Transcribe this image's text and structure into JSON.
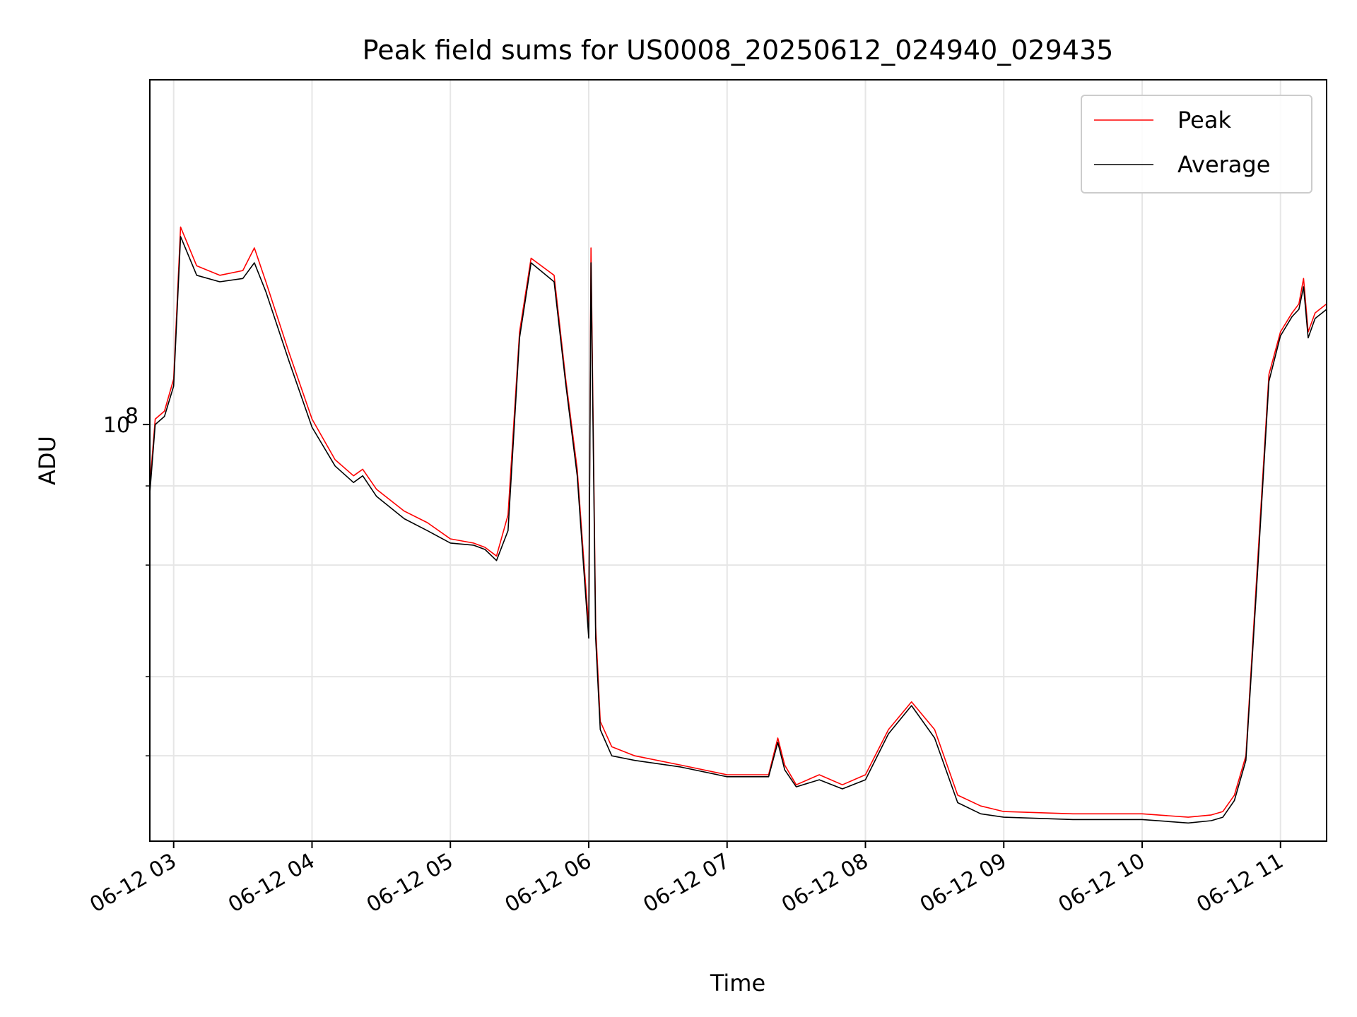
{
  "chart_data": {
    "type": "line",
    "title": "Peak field sums for US0008_20250612_024940_029435",
    "xlabel": "Time",
    "ylabel": "ADU",
    "y_scale": "log",
    "ylim": [
      22000000,
      350000000
    ],
    "y_major_tick_labels": [
      {
        "value": 100000000,
        "label": "10",
        "exp": "8"
      }
    ],
    "y_minor_ticks": [
      30000000,
      40000000,
      60000000,
      80000000
    ],
    "xlim": [
      "06-12 02:49:40",
      "06-12 11:20:00"
    ],
    "x_ticks": [
      {
        "value": "06-12 03:00",
        "label": "06-12 03"
      },
      {
        "value": "06-12 04:00",
        "label": "06-12 04"
      },
      {
        "value": "06-12 05:00",
        "label": "06-12 05"
      },
      {
        "value": "06-12 06:00",
        "label": "06-12 06"
      },
      {
        "value": "06-12 07:00",
        "label": "06-12 07"
      },
      {
        "value": "06-12 08:00",
        "label": "06-12 08"
      },
      {
        "value": "06-12 09:00",
        "label": "06-12 09"
      },
      {
        "value": "06-12 10:00",
        "label": "06-12 10"
      },
      {
        "value": "06-12 11:00",
        "label": "06-12 11"
      }
    ],
    "grid": true,
    "legend": {
      "placement": "top-right"
    },
    "series": [
      {
        "name": "Peak",
        "color": "#ff0000",
        "x": [
          "06-12 02:49:40",
          "06-12 02:52",
          "06-12 02:56",
          "06-12 03:00",
          "06-12 03:03",
          "06-12 03:10",
          "06-12 03:20",
          "06-12 03:30",
          "06-12 03:35",
          "06-12 03:40",
          "06-12 03:50",
          "06-12 04:00",
          "06-12 04:10",
          "06-12 04:18",
          "06-12 04:22",
          "06-12 04:28",
          "06-12 04:40",
          "06-12 04:50",
          "06-12 05:00",
          "06-12 05:10",
          "06-12 05:15",
          "06-12 05:20",
          "06-12 05:25",
          "06-12 05:30",
          "06-12 05:35",
          "06-12 05:45",
          "06-12 05:50",
          "06-12 05:55",
          "06-12 05:58",
          "06-12 06:00",
          "06-12 06:01",
          "06-12 06:03",
          "06-12 06:05",
          "06-12 06:10",
          "06-12 06:20",
          "06-12 06:40",
          "06-12 07:00",
          "06-12 07:10",
          "06-12 07:18",
          "06-12 07:22",
          "06-12 07:25",
          "06-12 07:30",
          "06-12 07:40",
          "06-12 07:50",
          "06-12 08:00",
          "06-12 08:10",
          "06-12 08:20",
          "06-12 08:30",
          "06-12 08:40",
          "06-12 08:50",
          "06-12 09:00",
          "06-12 09:30",
          "06-12 10:00",
          "06-12 10:20",
          "06-12 10:30",
          "06-12 10:35",
          "06-12 10:40",
          "06-12 10:45",
          "06-12 10:50",
          "06-12 10:55",
          "06-12 11:00",
          "06-12 11:05",
          "06-12 11:08",
          "06-12 11:10",
          "06-12 11:12",
          "06-12 11:15",
          "06-12 11:20"
        ],
        "values": [
          80000000,
          102000000,
          105000000,
          118000000,
          205000000,
          178000000,
          172000000,
          175000000,
          190000000,
          168000000,
          130000000,
          102000000,
          88000000,
          83000000,
          85000000,
          79000000,
          73000000,
          70000000,
          66000000,
          65000000,
          64000000,
          62000000,
          72000000,
          140000000,
          183000000,
          172000000,
          118000000,
          85000000,
          60000000,
          48000000,
          190000000,
          48000000,
          34000000,
          31000000,
          30000000,
          29000000,
          28000000,
          28000000,
          28000000,
          32000000,
          29000000,
          27000000,
          28000000,
          27000000,
          28000000,
          33000000,
          36500000,
          33000000,
          26000000,
          25000000,
          24500000,
          24300000,
          24300000,
          24000000,
          24200000,
          24500000,
          26000000,
          30000000,
          60000000,
          120000000,
          140000000,
          150000000,
          155000000,
          170000000,
          140000000,
          150000000,
          155000000
        ]
      },
      {
        "name": "Average",
        "color": "#000000",
        "x": [
          "06-12 02:49:40",
          "06-12 02:52",
          "06-12 02:56",
          "06-12 03:00",
          "06-12 03:03",
          "06-12 03:10",
          "06-12 03:20",
          "06-12 03:30",
          "06-12 03:35",
          "06-12 03:40",
          "06-12 03:50",
          "06-12 04:00",
          "06-12 04:10",
          "06-12 04:18",
          "06-12 04:22",
          "06-12 04:28",
          "06-12 04:40",
          "06-12 04:50",
          "06-12 05:00",
          "06-12 05:10",
          "06-12 05:15",
          "06-12 05:20",
          "06-12 05:25",
          "06-12 05:30",
          "06-12 05:35",
          "06-12 05:45",
          "06-12 05:50",
          "06-12 05:55",
          "06-12 05:58",
          "06-12 06:00",
          "06-12 06:01",
          "06-12 06:03",
          "06-12 06:05",
          "06-12 06:10",
          "06-12 06:20",
          "06-12 06:40",
          "06-12 07:00",
          "06-12 07:10",
          "06-12 07:18",
          "06-12 07:22",
          "06-12 07:25",
          "06-12 07:30",
          "06-12 07:40",
          "06-12 07:50",
          "06-12 08:00",
          "06-12 08:10",
          "06-12 08:20",
          "06-12 08:30",
          "06-12 08:40",
          "06-12 08:50",
          "06-12 09:00",
          "06-12 09:30",
          "06-12 10:00",
          "06-12 10:20",
          "06-12 10:30",
          "06-12 10:35",
          "06-12 10:40",
          "06-12 10:45",
          "06-12 10:50",
          "06-12 10:55",
          "06-12 11:00",
          "06-12 11:05",
          "06-12 11:08",
          "06-12 11:10",
          "06-12 11:12",
          "06-12 11:15",
          "06-12 11:20"
        ],
        "values": [
          78000000,
          100000000,
          103000000,
          115000000,
          198000000,
          172000000,
          168000000,
          170000000,
          180000000,
          162000000,
          126000000,
          99000000,
          86000000,
          81000000,
          83000000,
          77000000,
          71000000,
          68000000,
          65000000,
          64500000,
          63500000,
          61000000,
          68000000,
          137000000,
          180000000,
          168000000,
          116000000,
          83000000,
          58000000,
          46000000,
          180000000,
          46000000,
          33000000,
          30000000,
          29500000,
          28800000,
          27800000,
          27800000,
          27800000,
          31500000,
          28500000,
          26800000,
          27500000,
          26600000,
          27500000,
          32500000,
          36000000,
          32000000,
          25300000,
          24300000,
          24000000,
          23800000,
          23800000,
          23500000,
          23700000,
          24000000,
          25500000,
          29500000,
          58000000,
          117000000,
          138000000,
          148000000,
          152000000,
          165000000,
          137000000,
          147000000,
          152000000
        ]
      }
    ]
  }
}
